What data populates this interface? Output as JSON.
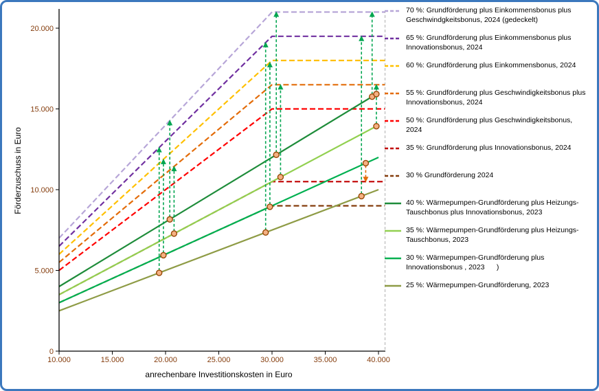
{
  "chart_data": {
    "type": "line",
    "xlabel": "anrechenbare Investitionskosten in Euro",
    "ylabel": "Förderzuschuss in Euro",
    "xlim": [
      10000,
      40600
    ],
    "ylim": [
      0,
      21400
    ],
    "grid": false,
    "legend_position": "right",
    "tick_color": "#843c0c",
    "axis_color": "#000000",
    "arrow_color": "#00a550",
    "x_ticks": [
      {
        "v": 10000,
        "label": "10.000"
      },
      {
        "v": 15000,
        "label": "15.000"
      },
      {
        "v": 20000,
        "label": "20.000"
      },
      {
        "v": 25000,
        "label": "25.000"
      },
      {
        "v": 30000,
        "label": "30.000"
      },
      {
        "v": 35000,
        "label": "35.000"
      },
      {
        "v": 40000,
        "label": "40.000"
      }
    ],
    "y_ticks": [
      {
        "v": 0,
        "label": "0"
      },
      {
        "v": 5000,
        "label": "5.000"
      },
      {
        "v": 10000,
        "label": "10.000"
      },
      {
        "v": 15000,
        "label": "15.000"
      },
      {
        "v": 20000,
        "label": "20.000"
      }
    ],
    "series": [
      {
        "name": "70 %: Grundförderung plus Einkommensbonus plus\nGeschwindgkeitsbonus, 2024 (gedeckelt)",
        "color": "#b7a6d8",
        "dashed": true,
        "points": [
          [
            10000,
            7000
          ],
          [
            30000,
            21000
          ],
          [
            40600,
            21000
          ]
        ]
      },
      {
        "name": "65 %: Grundförderung plus Einkommensbonus plus\nInnovationsbonus, 2024",
        "color": "#7030a0",
        "dashed": true,
        "points": [
          [
            10000,
            6500
          ],
          [
            30000,
            19500
          ],
          [
            40600,
            19500
          ]
        ]
      },
      {
        "name": "60 %: Grundförderung plus Einkommensbonus, 2024",
        "color": "#ffc000",
        "dashed": true,
        "points": [
          [
            10000,
            6000
          ],
          [
            30000,
            18000
          ],
          [
            40600,
            18000
          ]
        ]
      },
      {
        "name": "55 %: Grundförderung plus Geschwindigkeitsbonus plus\nInnovationsbonus, 2024",
        "color": "#e36c09",
        "dashed": true,
        "points": [
          [
            10000,
            5500
          ],
          [
            30000,
            16500
          ],
          [
            40600,
            16500
          ]
        ]
      },
      {
        "name": "50 %: Grundförderung plus Geschwindigkeitsbonus,\n2024",
        "color": "#ff0000",
        "dashed": true,
        "points": [
          [
            10000,
            5000
          ],
          [
            30000,
            15000
          ],
          [
            40600,
            15000
          ]
        ]
      },
      {
        "name": "35 %: Grundförderung plus Innovationsbonus, 2024",
        "color": "#c00000",
        "dashed": true,
        "points": [
          [
            10000,
            3500
          ],
          [
            30000,
            10500
          ],
          [
            40600,
            10500
          ]
        ]
      },
      {
        "name": "30 % Grundförderung 2024",
        "color": "#843c0c",
        "dashed": true,
        "points": [
          [
            10000,
            3000
          ],
          [
            30000,
            9000
          ],
          [
            40600,
            9000
          ]
        ]
      },
      {
        "name": "40 %: Wärmepumpen-Grundförderung plus Heizungs-\nTauschbonus plus Innovationsbonus, 2023",
        "color": "#1e8c3a",
        "dashed": false,
        "points": [
          [
            10000,
            4000
          ],
          [
            40000,
            16000
          ]
        ]
      },
      {
        "name": "35 %: Wärmepumpen-Grundförderung plus Heizungs-\nTauschbonus, 2023",
        "color": "#92d050",
        "dashed": false,
        "points": [
          [
            10000,
            3500
          ],
          [
            40000,
            14000
          ]
        ]
      },
      {
        "name": "30 %: Wärmepumpen-Grundförderung plus\nInnovationsbonus , 2023      )",
        "color": "#00b050",
        "dashed": false,
        "points": [
          [
            10000,
            3000
          ],
          [
            40000,
            12000
          ]
        ]
      },
      {
        "name": "25 %: Wärmepumpen-Grundförderung, 2023",
        "color": "#8e9b45",
        "dashed": false,
        "points": [
          [
            10000,
            2500
          ],
          [
            40000,
            10000
          ]
        ]
      }
    ],
    "arrows": [
      {
        "x": 19400,
        "from": 4850,
        "to": 12610
      },
      {
        "x": 19800,
        "from": 5940,
        "to": 11880
      },
      {
        "x": 20400,
        "from": 8160,
        "to": 14280
      },
      {
        "x": 20800,
        "from": 7280,
        "to": 11440
      },
      {
        "x": 29400,
        "from": 7350,
        "to": 19110
      },
      {
        "x": 29800,
        "from": 8940,
        "to": 17880
      },
      {
        "x": 30400,
        "from": 12160,
        "to": 21000
      },
      {
        "x": 30800,
        "from": 10780,
        "to": 16500
      },
      {
        "x": 38400,
        "from": 9600,
        "to": 19500
      },
      {
        "x": 38800,
        "from": 11640,
        "to": 10500,
        "color": "#e36c09"
      },
      {
        "x": 39400,
        "from": 15760,
        "to": 21000
      },
      {
        "x": 39800,
        "from": 13930,
        "to": 16500
      }
    ],
    "extra_markers": [
      {
        "x": 39800,
        "y": 15920
      }
    ],
    "marker_style": {
      "fill": "#f4b183",
      "stroke": "#984806"
    }
  }
}
